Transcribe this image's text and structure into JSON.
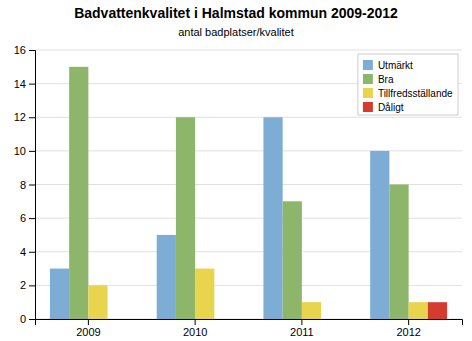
{
  "chart_data": {
    "type": "bar",
    "title": "Badvattenkvalitet i Halmstad kommun 2009-2012",
    "subtitle": "antal badplatser/kvalitet",
    "categories": [
      "2009",
      "2010",
      "2011",
      "2012"
    ],
    "series": [
      {
        "name": "Utmärkt",
        "color": "#7dadd4",
        "values": [
          3,
          5,
          12,
          10
        ]
      },
      {
        "name": "Bra",
        "color": "#8db66b",
        "values": [
          15,
          12,
          7,
          8
        ]
      },
      {
        "name": "Tillfredsställande",
        "color": "#e8d44d",
        "values": [
          2,
          3,
          1,
          1
        ]
      },
      {
        "name": "Dåligt",
        "color": "#d63b2f",
        "values": [
          0,
          0,
          0,
          1
        ]
      }
    ],
    "ylim": [
      0,
      16
    ],
    "yticks": [
      0,
      2,
      4,
      6,
      8,
      10,
      12,
      14,
      16
    ],
    "grid": true,
    "legend": "upper right"
  }
}
